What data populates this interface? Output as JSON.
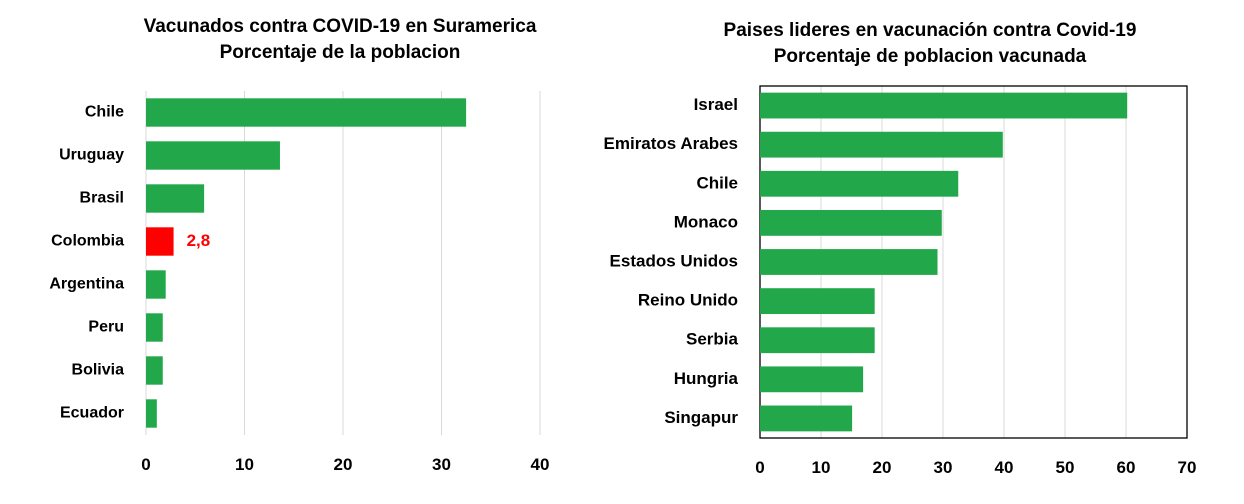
{
  "chart_data": [
    {
      "type": "bar",
      "orientation": "horizontal",
      "title": "Vacunados contra COVID-19 en Suramerica",
      "subtitle": "Porcentaje de la poblacion",
      "categories": [
        "Chile",
        "Uruguay",
        "Brasil",
        "Colombia",
        "Argentina",
        "Peru",
        "Bolivia",
        "Ecuador"
      ],
      "values": [
        32.5,
        13.6,
        5.9,
        2.8,
        2.0,
        1.7,
        1.7,
        1.1
      ],
      "xlim": [
        0,
        40
      ],
      "xticks": [
        0,
        10,
        20,
        30,
        40
      ],
      "grid": true,
      "bar_color": "#22a84a",
      "highlight": {
        "category": "Colombia",
        "color": "#ff0000",
        "label": "2,8"
      }
    },
    {
      "type": "bar",
      "orientation": "horizontal",
      "title": "Paises lideres en vacunación contra Covid-19",
      "subtitle": "Porcentaje de poblacion vacunada",
      "categories": [
        "Israel",
        "Emiratos Arabes",
        "Chile",
        "Monaco",
        "Estados Unidos",
        "Reino Unido",
        "Serbia",
        "Hungria",
        "Singapur"
      ],
      "values": [
        60.2,
        39.8,
        32.5,
        29.8,
        29.1,
        18.8,
        18.8,
        16.9,
        15.1
      ],
      "xlim": [
        0,
        70
      ],
      "xticks": [
        0,
        10,
        20,
        30,
        40,
        50,
        60,
        70
      ],
      "grid": true,
      "bar_color": "#22a84a"
    }
  ]
}
